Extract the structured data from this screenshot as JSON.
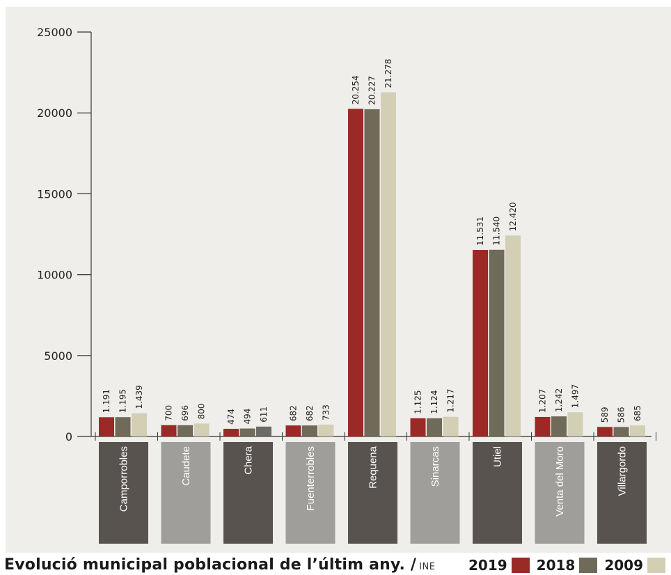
{
  "chart_data": {
    "type": "bar",
    "title": "",
    "xlabel": "",
    "ylabel": "",
    "ylim": [
      0,
      25000
    ],
    "yticks": [
      "0",
      "5000",
      "10000",
      "15000",
      "20000",
      "25000"
    ],
    "grid": false,
    "legend_position": "bottom-right",
    "categories": [
      "Camporrobles",
      "Caudete",
      "Chera",
      "Fuenterrobles",
      "Requena",
      "Sinarcas",
      "Utiel",
      "Venta del Moro",
      "Villargordo"
    ],
    "series": [
      {
        "name": "2019",
        "color": "#9b2a27",
        "values": [
          1191,
          700,
          474,
          682,
          20254,
          1125,
          11531,
          1207,
          589
        ],
        "labels": [
          "1.191",
          "700",
          "474",
          "682",
          "20.254",
          "1.125",
          "11.531",
          "1.207",
          "589"
        ]
      },
      {
        "name": "2018",
        "color": "#706a59",
        "values": [
          1195,
          696,
          494,
          682,
          20227,
          1124,
          11540,
          1242,
          586
        ],
        "labels": [
          "1.195",
          "696",
          "494",
          "682",
          "20.227",
          "1.124",
          "11.540",
          "1.242",
          "586"
        ]
      },
      {
        "name": "2009",
        "color": "#d3cfb5",
        "values": [
          1439,
          800,
          611,
          733,
          21278,
          1217,
          12420,
          1497,
          685
        ],
        "labels": [
          "1.439",
          "800",
          "611",
          "733",
          "21.278",
          "1.217",
          "12.420",
          "1.497",
          "685"
        ]
      }
    ]
  },
  "colors": {
    "panel_background": "#efeeeb",
    "label_dark": "#58534f",
    "label_light": "#a09e9b",
    "chera_2009_bar": "#6c6a67"
  },
  "caption": {
    "text": "Evolució municipal poblacional de l’últim any. /",
    "source": "INE"
  }
}
